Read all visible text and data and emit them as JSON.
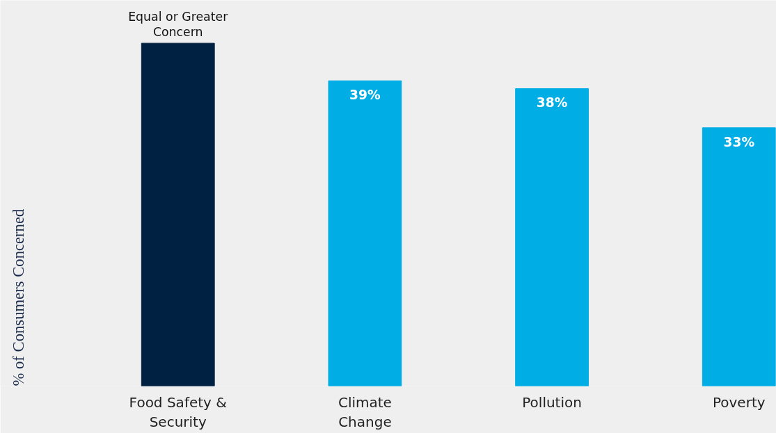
{
  "chart_data": {
    "type": "bar",
    "ylabel": "% of Consumers Concerned",
    "categories": [
      "Food Safety & Security",
      "Climate Change",
      "Pollution",
      "Poverty"
    ],
    "values": [
      43.8,
      39,
      38,
      33
    ],
    "colors": [
      "#002142",
      "#00ade5",
      "#00ade5",
      "#00ade5"
    ],
    "value_labels": [
      null,
      "39%",
      "38%",
      "33%"
    ],
    "annotations": [
      {
        "text": "Equal or Greater Concern",
        "x": "Food Safety & Security",
        "y": 43.8
      }
    ],
    "grid": false
  }
}
